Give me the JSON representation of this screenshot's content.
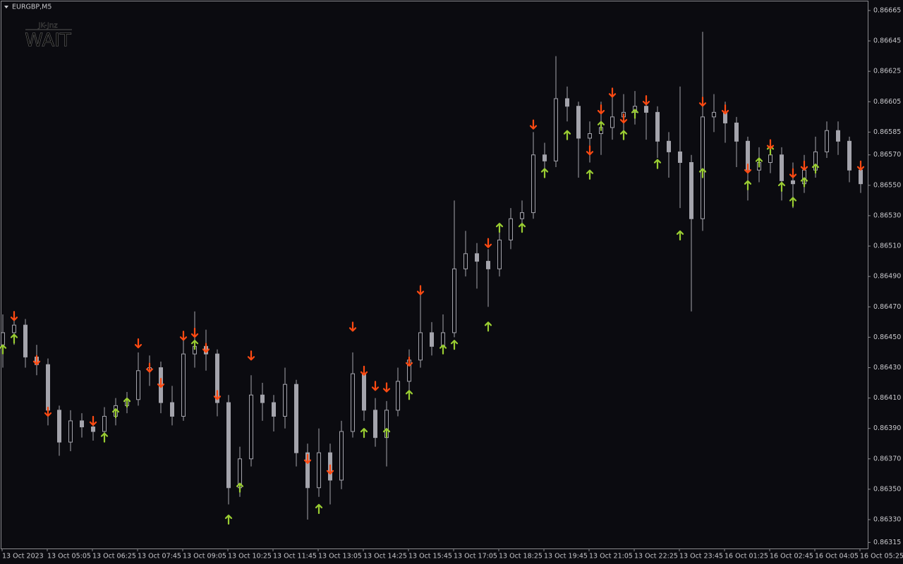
{
  "chart_data": {
    "type": "candlestick",
    "title": "EURGBP,M5",
    "overlay_caption": "JK-Jnz",
    "overlay_text": "WAIT",
    "candle_color": "#a4a4ac",
    "categories": [
      "13 Oct 2023",
      null,
      null,
      null,
      "13 Oct 05:05",
      null,
      null,
      null,
      "13 Oct 06:25",
      null,
      null,
      null,
      "13 Oct 07:45",
      null,
      null,
      null,
      "13 Oct 09:05",
      null,
      null,
      null,
      "13 Oct 10:25",
      null,
      null,
      null,
      "13 Oct 11:45",
      null,
      null,
      null,
      "13 Oct 13:05",
      null,
      null,
      null,
      "13 Oct 14:25",
      null,
      null,
      null,
      "13 Oct 15:45",
      null,
      null,
      null,
      "13 Oct 17:05",
      null,
      null,
      null,
      "13 Oct 18:25",
      null,
      null,
      null,
      "13 Oct 19:45",
      null,
      null,
      null,
      "13 Oct 21:05",
      null,
      null,
      null,
      "13 Oct 22:25",
      null,
      null,
      null,
      "13 Oct 23:45",
      null,
      null,
      null,
      "16 Oct 01:25",
      null,
      null,
      null,
      "16 Oct 02:45",
      null,
      null,
      null,
      "16 Oct 04:05",
      null,
      null,
      null,
      "16 Oct 05:25"
    ],
    "open": [
      0.86445,
      0.86453,
      0.86458,
      0.86437,
      0.86432,
      0.86402,
      0.86381,
      0.86395,
      0.86391,
      0.86388,
      0.86398,
      0.86405,
      0.86409,
      0.86428,
      0.8643,
      0.86407,
      0.86398,
      0.86439,
      0.86444,
      0.86439,
      0.86407,
      0.86351,
      0.8637,
      0.86412,
      0.86407,
      0.86398,
      0.86419,
      0.86374,
      0.86351,
      0.86374,
      0.86356,
      0.86388,
      0.86426,
      0.86402,
      0.86384,
      0.86402,
      0.86421,
      0.86435,
      0.86453,
      0.86444,
      0.86453,
      0.86495,
      0.86505,
      0.865,
      0.86495,
      0.86514,
      0.86528,
      0.86532,
      0.8657,
      0.86566,
      0.86607,
      0.86602,
      0.86581,
      0.86584,
      0.86588,
      0.86595,
      0.86598,
      0.86602,
      0.86598,
      0.86579,
      0.86572,
      0.86565,
      0.86528,
      0.86595,
      0.86598,
      0.86591,
      0.86579,
      0.8656,
      0.86565,
      0.8657,
      0.86553,
      0.86551,
      0.8656,
      0.86572,
      0.86586,
      0.86579,
      0.8656
    ],
    "high": [
      0.86465,
      0.86467,
      0.86462,
      0.86445,
      0.86436,
      0.86405,
      0.86402,
      0.864,
      0.86396,
      0.86404,
      0.8641,
      0.86414,
      0.8644,
      0.86438,
      0.86434,
      0.86418,
      0.86452,
      0.86467,
      0.86455,
      0.86442,
      0.86412,
      0.86378,
      0.86425,
      0.8642,
      0.86412,
      0.8643,
      0.86422,
      0.8638,
      0.8639,
      0.8638,
      0.86395,
      0.8644,
      0.8643,
      0.8641,
      0.86408,
      0.8643,
      0.86442,
      0.86478,
      0.8646,
      0.86465,
      0.8654,
      0.8652,
      0.86512,
      0.86508,
      0.86525,
      0.86535,
      0.8654,
      0.86585,
      0.86578,
      0.86635,
      0.86615,
      0.86605,
      0.86592,
      0.86605,
      0.86608,
      0.8661,
      0.86612,
      0.86608,
      0.86602,
      0.86585,
      0.86615,
      0.8657,
      0.86651,
      0.8661,
      0.86605,
      0.86595,
      0.86582,
      0.86575,
      0.8658,
      0.86575,
      0.86565,
      0.8657,
      0.86582,
      0.86592,
      0.86592,
      0.86582,
      0.86565
    ],
    "low": [
      0.8643,
      0.86445,
      0.8643,
      0.86425,
      0.86392,
      0.86372,
      0.86375,
      0.86384,
      0.86382,
      0.86383,
      0.86392,
      0.864,
      0.86405,
      0.86418,
      0.864,
      0.86392,
      0.86395,
      0.8643,
      0.86428,
      0.86398,
      0.8634,
      0.86345,
      0.86365,
      0.86395,
      0.86388,
      0.8639,
      0.86365,
      0.8633,
      0.86345,
      0.8634,
      0.8635,
      0.86384,
      0.86395,
      0.86378,
      0.86365,
      0.86398,
      0.86415,
      0.8643,
      0.86438,
      0.8644,
      0.8645,
      0.8649,
      0.86482,
      0.8647,
      0.8649,
      0.86508,
      0.8652,
      0.86528,
      0.86555,
      0.86562,
      0.86592,
      0.86555,
      0.86565,
      0.8657,
      0.8658,
      0.86585,
      0.8659,
      0.8658,
      0.86568,
      0.86555,
      0.86535,
      0.86467,
      0.8652,
      0.86585,
      0.86578,
      0.86562,
      0.8654,
      0.86552,
      0.86558,
      0.8654,
      0.86535,
      0.86545,
      0.86555,
      0.86568,
      0.8657,
      0.86552,
      0.86545
    ],
    "close": [
      0.86453,
      0.86458,
      0.86437,
      0.86432,
      0.86402,
      0.86381,
      0.86395,
      0.86391,
      0.86388,
      0.86398,
      0.86405,
      0.86409,
      0.86428,
      0.8643,
      0.86407,
      0.86398,
      0.86439,
      0.86444,
      0.86439,
      0.86407,
      0.86351,
      0.8637,
      0.86412,
      0.86407,
      0.86398,
      0.86419,
      0.86374,
      0.86351,
      0.86374,
      0.86356,
      0.86388,
      0.86426,
      0.86402,
      0.86384,
      0.86402,
      0.86421,
      0.86435,
      0.86453,
      0.86444,
      0.86453,
      0.86495,
      0.86505,
      0.865,
      0.86495,
      0.86514,
      0.86528,
      0.86532,
      0.8657,
      0.86566,
      0.86607,
      0.86602,
      0.86581,
      0.86584,
      0.86588,
      0.86595,
      0.86598,
      0.86602,
      0.86598,
      0.86579,
      0.86572,
      0.86565,
      0.86528,
      0.86595,
      0.86598,
      0.86591,
      0.86579,
      0.8656,
      0.86565,
      0.8657,
      0.86553,
      0.86551,
      0.8656,
      0.86572,
      0.86586,
      0.86579,
      0.8656,
      0.86551
    ],
    "buy_signals": {
      "color": "#9acd32",
      "index": [
        0,
        1,
        9,
        10,
        11,
        17,
        20,
        21,
        28,
        32,
        34,
        36,
        39,
        40,
        43,
        44,
        46,
        48,
        50,
        52,
        53,
        55,
        56,
        58,
        60,
        62,
        66,
        67,
        68,
        69,
        70,
        71,
        72
      ],
      "price": [
        0.86442,
        0.86449,
        0.86384,
        0.864,
        0.86407,
        0.86445,
        0.8633,
        0.86351,
        0.86337,
        0.86387,
        0.86387,
        0.86412,
        0.86442,
        0.86445,
        0.86457,
        0.86522,
        0.86522,
        0.86558,
        0.86583,
        0.86557,
        0.86589,
        0.86583,
        0.86597,
        0.86564,
        0.86517,
        0.86558,
        0.8655,
        0.86565,
        0.86573,
        0.86549,
        0.86539,
        0.86552,
        0.86561
      ]
    },
    "sell_signals": {
      "color": "#ff4a12",
      "index": [
        1,
        3,
        4,
        8,
        12,
        13,
        14,
        16,
        17,
        18,
        19,
        22,
        27,
        29,
        31,
        32,
        33,
        34,
        36,
        37,
        43,
        47,
        52,
        53,
        54,
        55,
        57,
        62,
        64,
        66,
        68,
        70,
        71,
        76
      ],
      "price": [
        0.86464,
        0.86435,
        0.86401,
        0.86395,
        0.86446,
        0.8643,
        0.8642,
        0.86451,
        0.86453,
        0.86443,
        0.86412,
        0.86438,
        0.8637,
        0.86363,
        0.86457,
        0.86428,
        0.86418,
        0.86417,
        0.86434,
        0.86481,
        0.86512,
        0.8659,
        0.86573,
        0.866,
        0.86611,
        0.86594,
        0.86606,
        0.86605,
        0.866,
        0.86561,
        0.86577,
        0.86558,
        0.86563,
        0.86563
      ]
    },
    "ylim": [
      0.86311,
      0.86671
    ],
    "yticks": [
      0.86665,
      0.86645,
      0.86625,
      0.86605,
      0.86585,
      {
        "value": 0.8657,
        "label": "0.86570"
      },
      {
        "value": 0.8655,
        "label": "0.86550"
      },
      {
        "value": 0.8653,
        "label": "0.86530"
      },
      {
        "value": 0.8651,
        "label": "0.86510"
      },
      {
        "value": 0.8649,
        "label": "0.86490"
      },
      {
        "value": 0.8647,
        "label": "0.86470"
      },
      {
        "value": 0.8645,
        "label": "0.86450"
      },
      {
        "value": 0.8643,
        "label": "0.86430"
      },
      {
        "value": 0.8641,
        "label": "0.86410"
      },
      {
        "value": 0.8639,
        "label": "0.86390"
      },
      {
        "value": 0.8637,
        "label": "0.86370"
      },
      {
        "value": 0.8635,
        "label": "0.86350"
      },
      {
        "value": 0.8633,
        "label": "0.86330"
      },
      0.86315
    ],
    "grid": false
  }
}
